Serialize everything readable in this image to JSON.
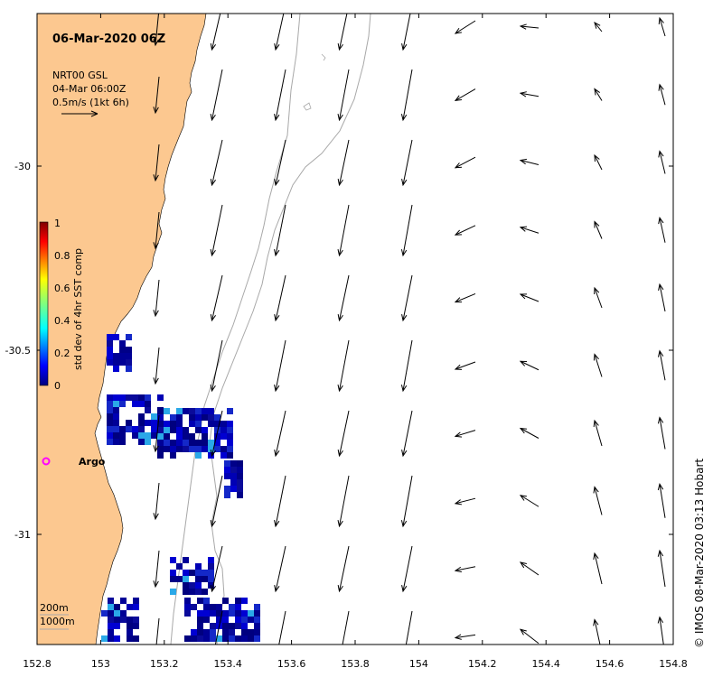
{
  "map": {
    "title": "06-Mar-2020 06Z",
    "product": "NRT00 GSL",
    "product_time": "04-Mar 06:00Z",
    "scale_label": "0.5m/s (1kt 6h)",
    "credit": "© IMOS 08-Mar-2020 03:13 Hobart",
    "land_color": "#fcc890",
    "sea_color": "#ffffff",
    "contour_color": "#a8a8a8",
    "contour_labels": [
      "200m",
      "1000m"
    ],
    "extent": {
      "lon": [
        152.8,
        154.8
      ],
      "lat": [
        -31.3,
        -29.6
      ]
    },
    "lon_ticks": [
      "152.8",
      "153",
      "153.2",
      "153.4",
      "153.6",
      "153.8",
      "154",
      "154.2",
      "154.4",
      "154.6",
      "154.8"
    ],
    "lat_ticks": [
      "-30",
      "-30.5",
      "-31"
    ],
    "argo": {
      "label": "Argo",
      "lon": 152.83,
      "lat": -30.82,
      "color": "#ff00ff"
    }
  },
  "colorbar": {
    "label": "std dev of 4hr SST comp",
    "ticks": [
      "0",
      "0.2",
      "0.4",
      "0.6",
      "0.8",
      "1"
    ],
    "colormap": "jet"
  }
}
